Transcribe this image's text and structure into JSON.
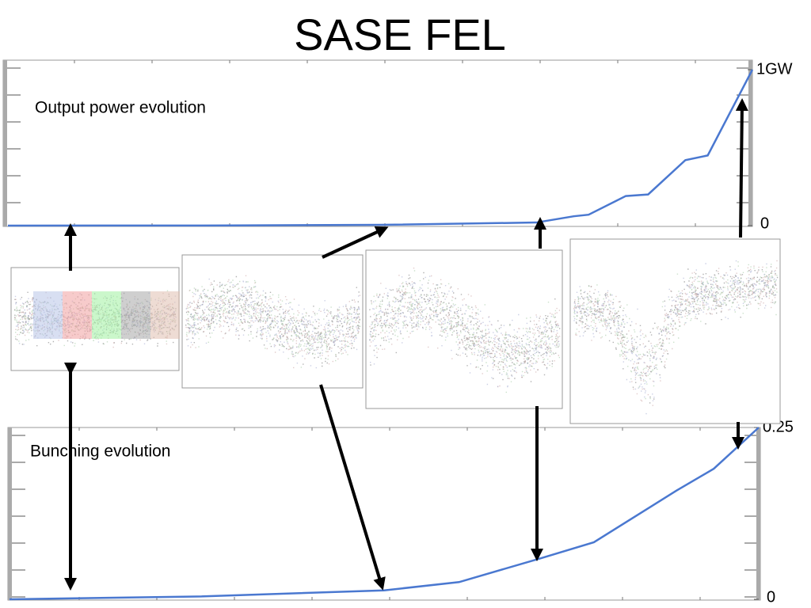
{
  "title": "SASE FEL",
  "chart_data": [
    {
      "type": "line",
      "title": "Output power evolution",
      "x": [
        0,
        0.3,
        0.5,
        0.71,
        0.76,
        0.78,
        0.83,
        0.86,
        0.91,
        0.94,
        1.0
      ],
      "series": [
        {
          "color": "#4a78d0",
          "values": [
            0,
            0.001,
            0.005,
            0.02,
            0.06,
            0.07,
            0.19,
            0.2,
            0.42,
            0.45,
            1.0
          ]
        }
      ],
      "xlim": [
        0,
        1
      ],
      "ylim": [
        0,
        1
      ],
      "yticks": [
        0,
        {
          "value": 1,
          "label": "1GW"
        }
      ]
    },
    {
      "type": "line",
      "title": "Bunching evolution",
      "x": [
        0,
        0.25,
        0.5,
        0.6,
        0.71,
        0.78,
        0.89,
        0.94,
        1.0
      ],
      "series": [
        {
          "color": "#4a78d0",
          "values": [
            0,
            0.004,
            0.013,
            0.025,
            0.06,
            0.083,
            0.158,
            0.19,
            0.25
          ]
        }
      ],
      "xlim": [
        0,
        1
      ],
      "ylim": [
        0,
        0.25
      ],
      "yticks": [
        0,
        0.25
      ]
    }
  ]
}
